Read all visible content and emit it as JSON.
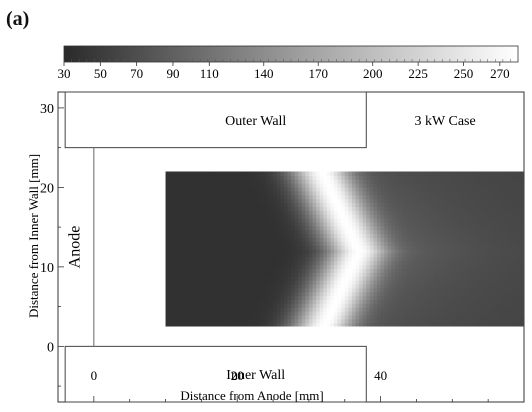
{
  "panel_label": "(a)",
  "chart_data": {
    "type": "heatmap",
    "title": "",
    "xlabel": "Distance from Anode [mm]",
    "ylabel": "Distance from Inner Wall [mm]",
    "xlim": [
      -5,
      60
    ],
    "ylim": [
      -7,
      32
    ],
    "x_ticks": [
      0,
      20,
      40
    ],
    "y_ticks": [
      0,
      10,
      20,
      30
    ],
    "colorbar": {
      "ticks": [
        30,
        50,
        70,
        90,
        110,
        140,
        170,
        200,
        225,
        250,
        270
      ],
      "range": [
        30,
        280
      ]
    },
    "annotations": [
      "Outer Wall",
      "Inner Wall",
      "Anode",
      "3 kW Case"
    ],
    "field": {
      "x_range": [
        10,
        60
      ],
      "y_range": [
        2.5,
        22
      ],
      "peak_x_at_channel_center": 37,
      "peak_x_at_edges": 32,
      "channel_center_y": 12,
      "peak_value": 280,
      "upstream_value": 40,
      "downstream_value": 60
    },
    "walls": {
      "outer_wall": {
        "x": [
          -4,
          38
        ],
        "y": [
          25,
          32
        ]
      },
      "inner_wall": {
        "x": [
          -4,
          38
        ],
        "y": [
          -7,
          0
        ]
      },
      "anode_x": 0
    }
  }
}
